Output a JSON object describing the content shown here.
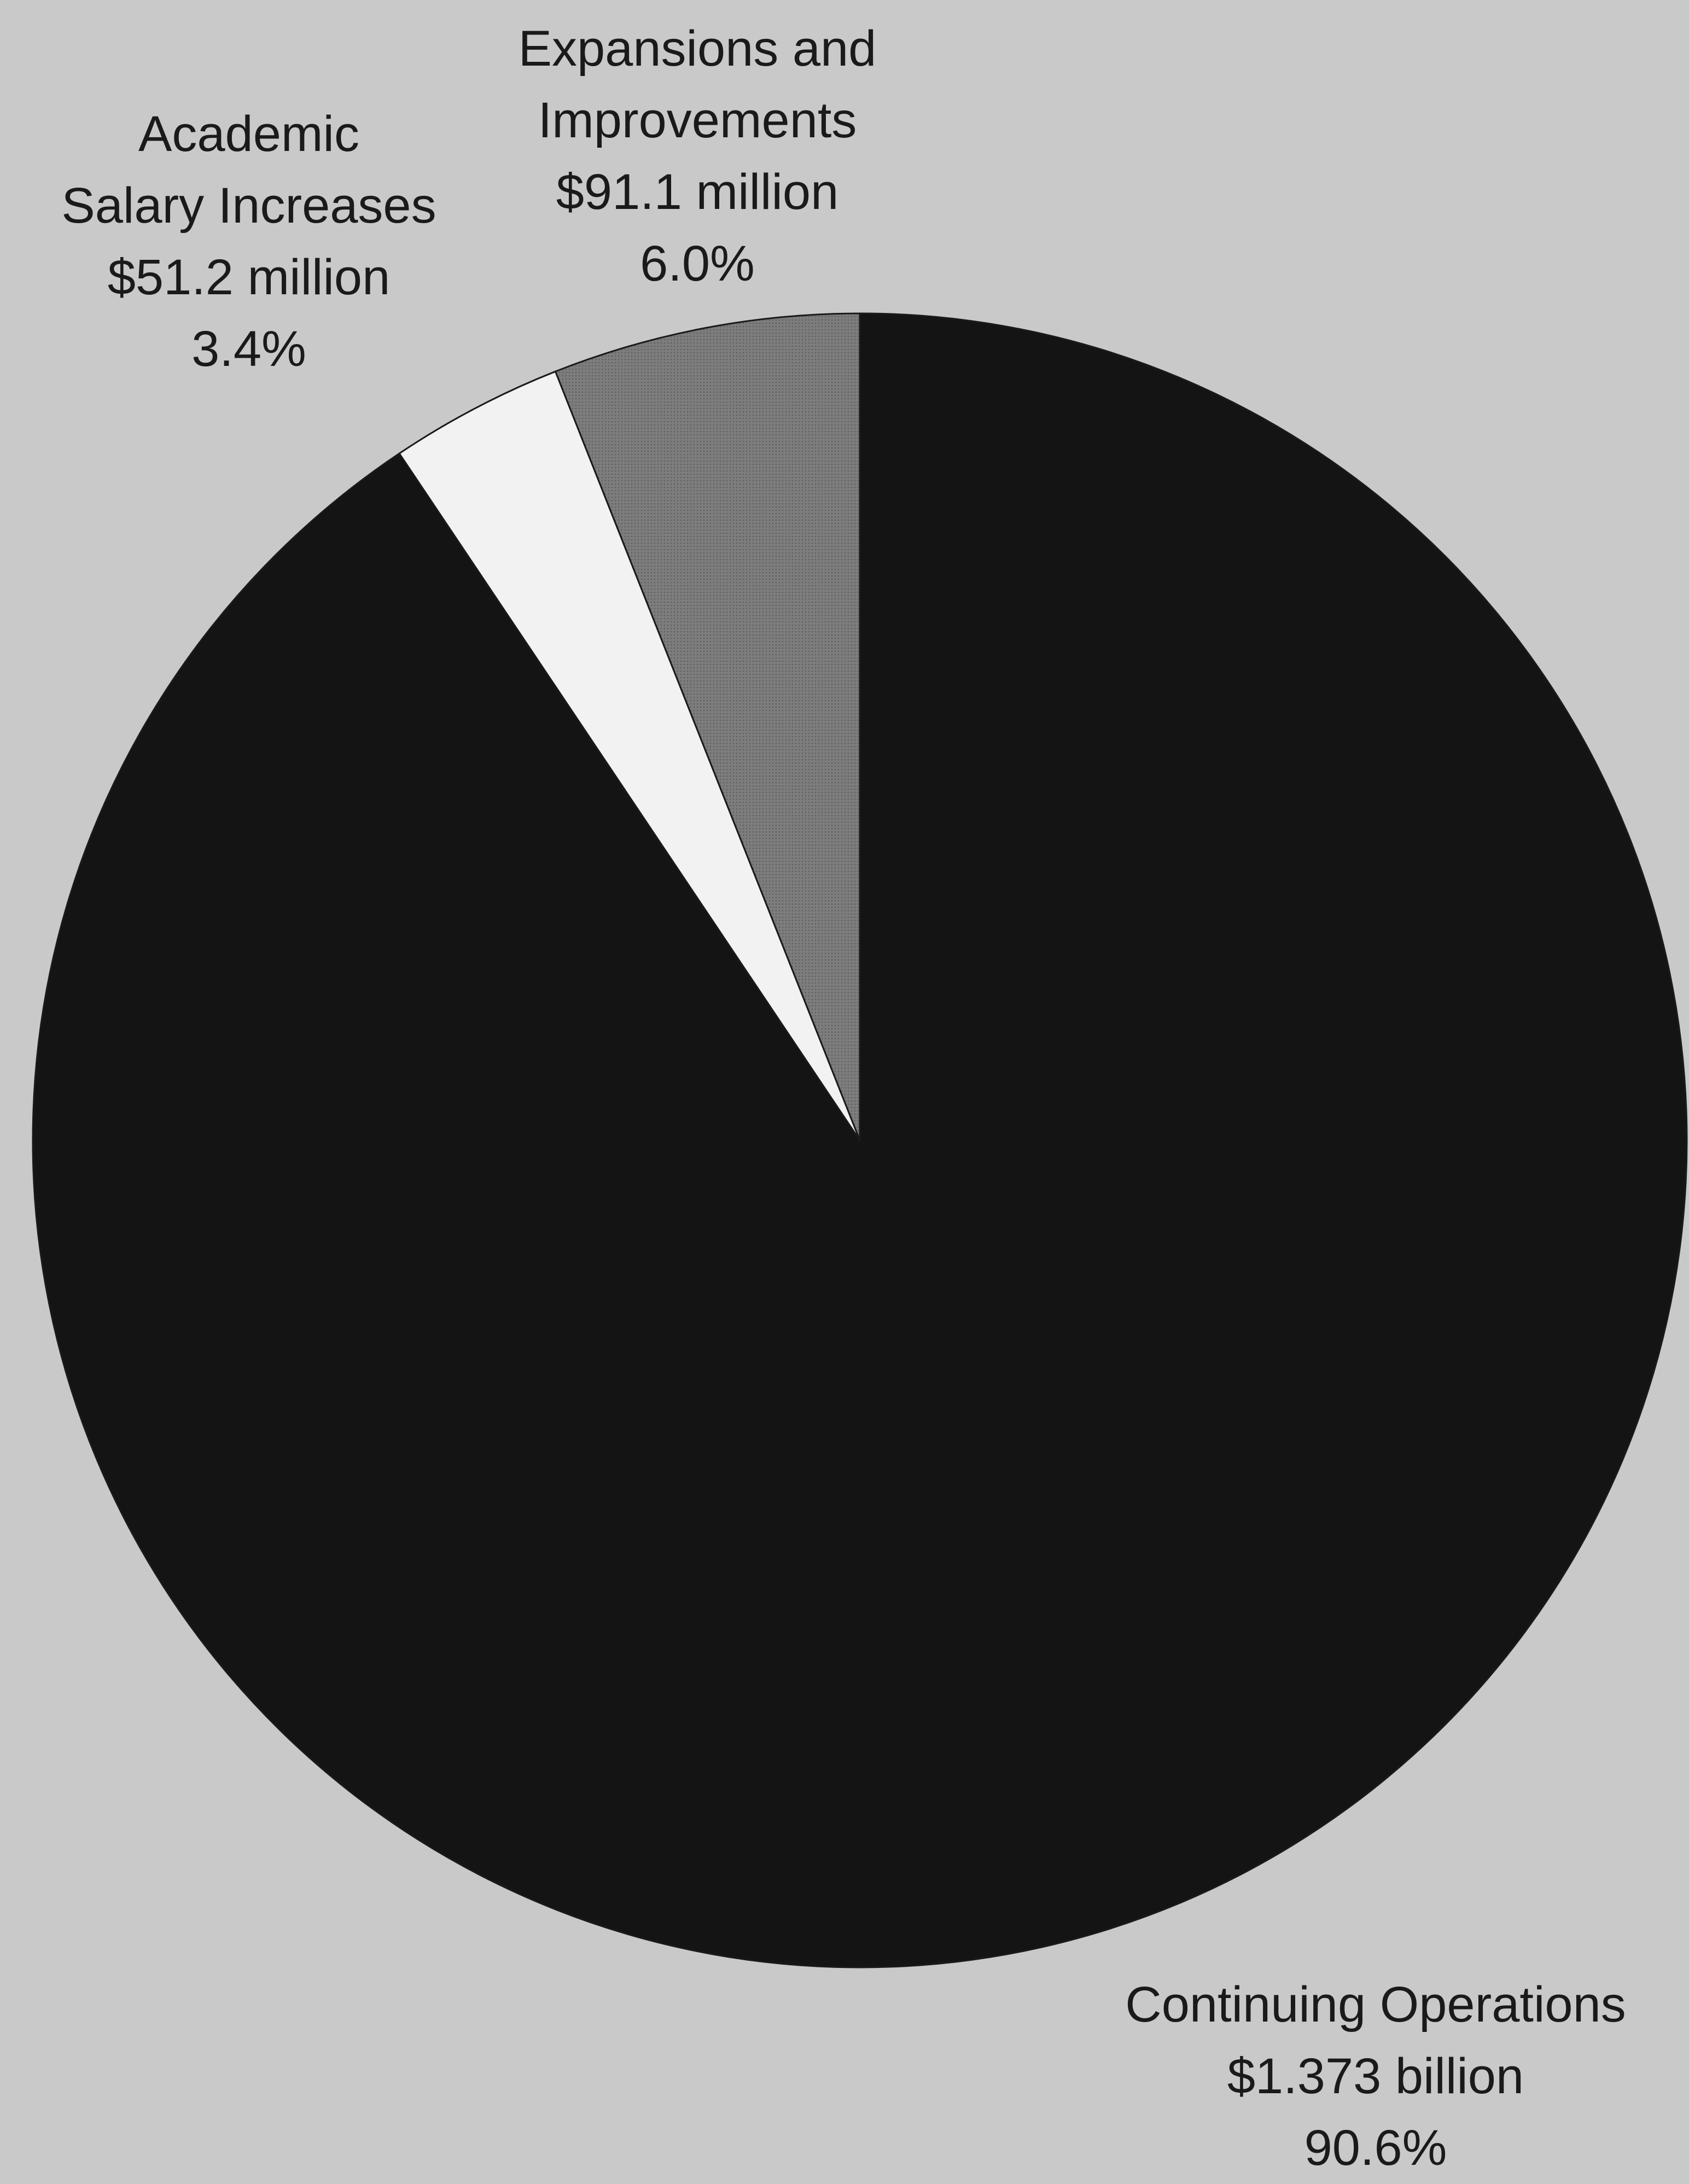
{
  "chart_data": {
    "type": "pie",
    "start_angle_deg": 0,
    "direction": "counterclockwise",
    "slices": [
      {
        "name": "Expansions and Improvements",
        "label_lines": [
          "Expansions and",
          "Improvements"
        ],
        "amount": "$91.1 million",
        "percent_label": "6.0%",
        "value": 6.0,
        "color": "#7d7d7d"
      },
      {
        "name": "Academic Salary Increases",
        "label_lines": [
          "Academic",
          "Salary Increases"
        ],
        "amount": "$51.2 million",
        "percent_label": "3.4%",
        "value": 3.4,
        "color": "#f2f2f2"
      },
      {
        "name": "Continuing Operations",
        "label_lines": [
          "Continuing Operations"
        ],
        "amount": "$1.373 billion",
        "percent_label": "90.6%",
        "value": 90.6,
        "color": "#141414"
      }
    ]
  },
  "colors": {
    "background": "#c9c9c9",
    "text": "#1a1a1a"
  }
}
